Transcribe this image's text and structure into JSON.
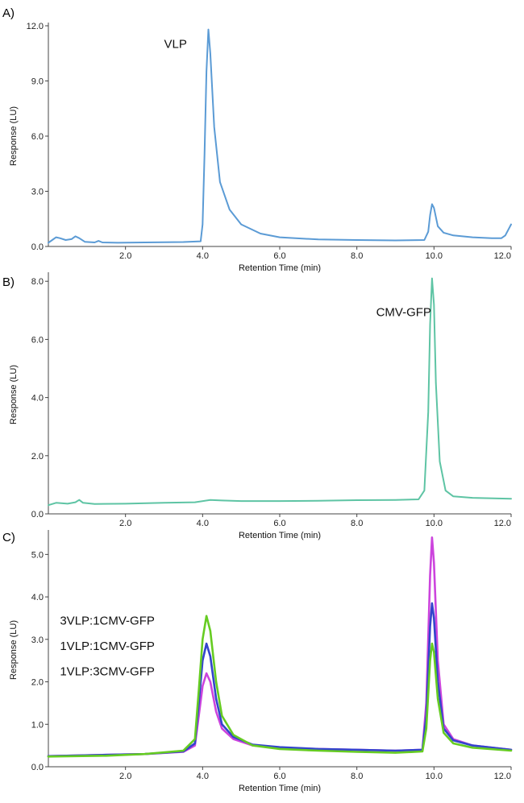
{
  "chart_data": [
    {
      "panel": "A)",
      "type": "line",
      "xlabel": "Retention Time (min)",
      "ylabel": "Response (LU)",
      "xlim": [
        0,
        12
      ],
      "ylim": [
        0,
        12
      ],
      "xticks": [
        "2.0",
        "4.0",
        "6.0",
        "8.0",
        "10.0",
        "12.0"
      ],
      "yticks": [
        "0.0",
        "3.0",
        "6.0",
        "9.0",
        "12.0"
      ],
      "annotations": [
        {
          "text": "VLP",
          "x": 3.0,
          "y": 10.8
        }
      ],
      "series": [
        {
          "name": "VLP",
          "color": "#5b9bd5",
          "points": [
            [
              0,
              0.2
            ],
            [
              0.1,
              0.35
            ],
            [
              0.2,
              0.5
            ],
            [
              0.3,
              0.45
            ],
            [
              0.45,
              0.35
            ],
            [
              0.6,
              0.4
            ],
            [
              0.7,
              0.55
            ],
            [
              0.8,
              0.45
            ],
            [
              0.95,
              0.25
            ],
            [
              1.2,
              0.22
            ],
            [
              1.3,
              0.3
            ],
            [
              1.4,
              0.22
            ],
            [
              1.8,
              0.2
            ],
            [
              2.5,
              0.22
            ],
            [
              3.5,
              0.24
            ],
            [
              3.95,
              0.28
            ],
            [
              4.0,
              1.2
            ],
            [
              4.05,
              5.0
            ],
            [
              4.1,
              9.5
            ],
            [
              4.15,
              11.8
            ],
            [
              4.2,
              10.5
            ],
            [
              4.3,
              6.5
            ],
            [
              4.45,
              3.5
            ],
            [
              4.7,
              2.0
            ],
            [
              5.0,
              1.2
            ],
            [
              5.5,
              0.7
            ],
            [
              6.0,
              0.5
            ],
            [
              7.0,
              0.38
            ],
            [
              8.0,
              0.35
            ],
            [
              9.0,
              0.33
            ],
            [
              9.75,
              0.35
            ],
            [
              9.85,
              0.8
            ],
            [
              9.9,
              1.7
            ],
            [
              9.95,
              2.3
            ],
            [
              10.0,
              2.1
            ],
            [
              10.1,
              1.1
            ],
            [
              10.25,
              0.75
            ],
            [
              10.5,
              0.6
            ],
            [
              11.0,
              0.5
            ],
            [
              11.5,
              0.45
            ],
            [
              11.75,
              0.45
            ],
            [
              11.85,
              0.6
            ],
            [
              11.95,
              1.0
            ],
            [
              12.0,
              1.2
            ]
          ]
        }
      ]
    },
    {
      "panel": "B)",
      "type": "line",
      "xlabel": "Retention Time (min)",
      "ylabel": "Response (LU)",
      "xlim": [
        0,
        12
      ],
      "ylim": [
        0,
        8.2
      ],
      "xticks": [
        "2.0",
        "4.0",
        "6.0",
        "8.0",
        "10.0",
        "12.0"
      ],
      "yticks": [
        "0.0",
        "2.0",
        "4.0",
        "6.0",
        "8.0"
      ],
      "annotations": [
        {
          "text": "CMV-GFP",
          "x": 8.5,
          "y": 6.8
        }
      ],
      "series": [
        {
          "name": "CMV-GFP",
          "color": "#5ec4a4",
          "points": [
            [
              0,
              0.3
            ],
            [
              0.2,
              0.38
            ],
            [
              0.5,
              0.35
            ],
            [
              0.7,
              0.4
            ],
            [
              0.8,
              0.48
            ],
            [
              0.9,
              0.38
            ],
            [
              1.2,
              0.34
            ],
            [
              2.0,
              0.35
            ],
            [
              3.0,
              0.38
            ],
            [
              3.8,
              0.4
            ],
            [
              4.2,
              0.48
            ],
            [
              4.5,
              0.46
            ],
            [
              5.0,
              0.44
            ],
            [
              6.0,
              0.44
            ],
            [
              7.0,
              0.45
            ],
            [
              8.0,
              0.47
            ],
            [
              9.0,
              0.48
            ],
            [
              9.6,
              0.5
            ],
            [
              9.75,
              0.8
            ],
            [
              9.85,
              3.5
            ],
            [
              9.9,
              6.5
            ],
            [
              9.95,
              8.1
            ],
            [
              10.0,
              7.2
            ],
            [
              10.05,
              4.5
            ],
            [
              10.15,
              1.8
            ],
            [
              10.3,
              0.8
            ],
            [
              10.5,
              0.6
            ],
            [
              11.0,
              0.55
            ],
            [
              12.0,
              0.52
            ]
          ]
        }
      ]
    },
    {
      "panel": "C)",
      "type": "line",
      "xlabel": "Retention Time (min)",
      "ylabel": "Response (LU)",
      "xlim": [
        0,
        12
      ],
      "ylim": [
        0,
        5.5
      ],
      "xticks": [
        "2.0",
        "4.0",
        "6.0",
        "8.0",
        "10.0",
        "12.0"
      ],
      "yticks": [
        "0.0",
        "1.0",
        "2.0",
        "3.0",
        "4.0",
        "5.0"
      ],
      "annotations": [
        {
          "text": "3VLP:1CMV-GFP",
          "x": 0.3,
          "y": 3.35
        },
        {
          "text": "1VLP:1CMV-GFP",
          "x": 0.3,
          "y": 2.75
        },
        {
          "text": "1VLP:3CMV-GFP",
          "x": 0.3,
          "y": 2.15
        }
      ],
      "series": [
        {
          "name": "1VLP:3CMV-GFP",
          "color": "#cc44dd",
          "points": [
            [
              0,
              0.25
            ],
            [
              1.5,
              0.28
            ],
            [
              2.5,
              0.3
            ],
            [
              3.5,
              0.35
            ],
            [
              3.8,
              0.5
            ],
            [
              3.9,
              1.2
            ],
            [
              4.0,
              1.9
            ],
            [
              4.1,
              2.2
            ],
            [
              4.2,
              2.0
            ],
            [
              4.35,
              1.3
            ],
            [
              4.5,
              0.9
            ],
            [
              4.8,
              0.65
            ],
            [
              5.3,
              0.5
            ],
            [
              6.0,
              0.45
            ],
            [
              7.0,
              0.42
            ],
            [
              8.0,
              0.4
            ],
            [
              9.0,
              0.38
            ],
            [
              9.7,
              0.4
            ],
            [
              9.8,
              1.5
            ],
            [
              9.9,
              4.5
            ],
            [
              9.95,
              5.4
            ],
            [
              10.0,
              4.8
            ],
            [
              10.1,
              2.5
            ],
            [
              10.25,
              1.0
            ],
            [
              10.5,
              0.65
            ],
            [
              11.0,
              0.5
            ],
            [
              12.0,
              0.4
            ]
          ]
        },
        {
          "name": "1VLP:1CMV-GFP",
          "color": "#3344cc",
          "points": [
            [
              0,
              0.25
            ],
            [
              1.5,
              0.28
            ],
            [
              2.5,
              0.3
            ],
            [
              3.5,
              0.36
            ],
            [
              3.8,
              0.55
            ],
            [
              3.9,
              1.5
            ],
            [
              4.0,
              2.5
            ],
            [
              4.1,
              2.9
            ],
            [
              4.2,
              2.6
            ],
            [
              4.35,
              1.6
            ],
            [
              4.5,
              1.0
            ],
            [
              4.8,
              0.7
            ],
            [
              5.3,
              0.52
            ],
            [
              6.0,
              0.46
            ],
            [
              7.0,
              0.42
            ],
            [
              8.0,
              0.4
            ],
            [
              9.0,
              0.38
            ],
            [
              9.7,
              0.4
            ],
            [
              9.8,
              1.2
            ],
            [
              9.9,
              3.3
            ],
            [
              9.95,
              3.85
            ],
            [
              10.0,
              3.5
            ],
            [
              10.1,
              2.0
            ],
            [
              10.25,
              0.9
            ],
            [
              10.5,
              0.62
            ],
            [
              11.0,
              0.5
            ],
            [
              12.0,
              0.4
            ]
          ]
        },
        {
          "name": "3VLP:1CMV-GFP",
          "color": "#66cc22",
          "points": [
            [
              0,
              0.24
            ],
            [
              1.5,
              0.26
            ],
            [
              2.5,
              0.3
            ],
            [
              3.5,
              0.38
            ],
            [
              3.8,
              0.65
            ],
            [
              3.9,
              1.8
            ],
            [
              4.0,
              3.0
            ],
            [
              4.1,
              3.55
            ],
            [
              4.2,
              3.2
            ],
            [
              4.35,
              2.0
            ],
            [
              4.5,
              1.2
            ],
            [
              4.8,
              0.75
            ],
            [
              5.3,
              0.5
            ],
            [
              6.0,
              0.42
            ],
            [
              7.0,
              0.38
            ],
            [
              8.0,
              0.35
            ],
            [
              9.0,
              0.33
            ],
            [
              9.7,
              0.36
            ],
            [
              9.8,
              0.9
            ],
            [
              9.9,
              2.5
            ],
            [
              9.95,
              2.9
            ],
            [
              10.0,
              2.7
            ],
            [
              10.1,
              1.6
            ],
            [
              10.25,
              0.8
            ],
            [
              10.5,
              0.55
            ],
            [
              11.0,
              0.45
            ],
            [
              12.0,
              0.38
            ]
          ]
        }
      ]
    }
  ]
}
